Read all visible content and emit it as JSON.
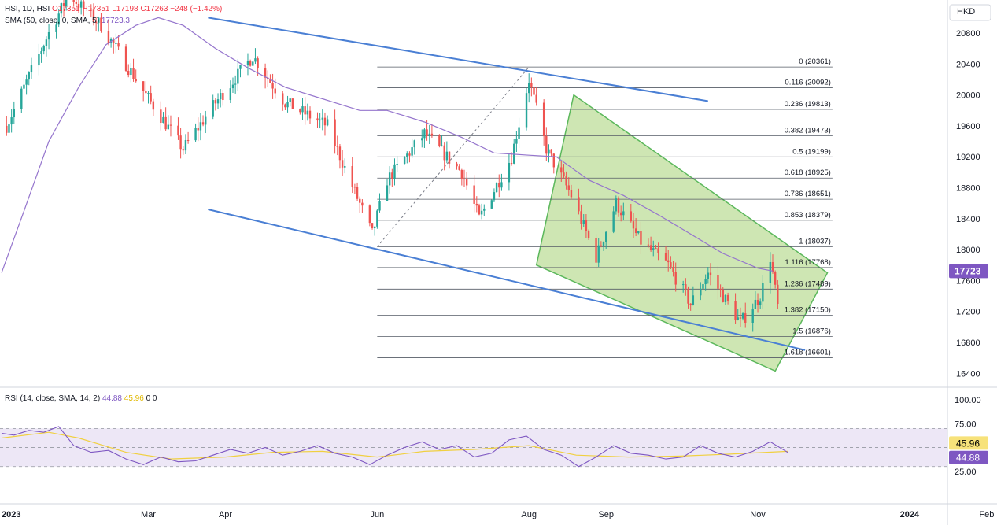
{
  "header": {
    "symbol": "HSI, 1D, HSI",
    "open": "O17351",
    "high": "H17351",
    "low": "L17198",
    "close": "C17263",
    "change": "−248 (−1.42%)",
    "sma_label": "SMA (50, close, 0, SMA, 5)",
    "sma_value": "17723.3",
    "rsi_label": "RSI (14, close, SMA, 14, 2)",
    "rsi_value": "44.88",
    "rsi_ma_value": "45.96",
    "rsi_extra": "0 0"
  },
  "colors": {
    "up": "#26a69a",
    "down": "#ef5350",
    "sma": "#9575cd",
    "channel": "#4a7fd4",
    "box_stroke": "#5cb85c",
    "box_fill": "#8bc34a",
    "rsi": "#7e57c2",
    "rsi_ma": "#f0d040",
    "rsi_band": "#ede7f6"
  },
  "chart_data": {
    "type": "candlestick",
    "currency": "HKD",
    "price_axis": {
      "ticks": [
        "20800",
        "20400",
        "20000",
        "19600",
        "19200",
        "18800",
        "18400",
        "18000",
        "17600",
        "17200",
        "16800",
        "16400"
      ],
      "range": [
        16200,
        21200
      ]
    },
    "x_axis": {
      "labels": [
        {
          "text": "2023",
          "date": "2023-01-01",
          "bold": true
        },
        {
          "text": "Mar",
          "date": "2023-03-01"
        },
        {
          "text": "Apr",
          "date": "2023-04-01"
        },
        {
          "text": "Jun",
          "date": "2023-06-01"
        },
        {
          "text": "Aug",
          "date": "2023-08-01"
        },
        {
          "text": "Sep",
          "date": "2023-09-01"
        },
        {
          "text": "Nov",
          "date": "2023-11-01"
        },
        {
          "text": "2024",
          "date": "2024-01-01",
          "bold": true
        },
        {
          "text": "Feb",
          "date": "2024-02-01"
        }
      ]
    },
    "last_price_label": "17723",
    "fibonacci": {
      "start_date": "2023-06-01",
      "end_date": "2023-12-01",
      "levels": [
        {
          "ratio": "0",
          "price": 20361
        },
        {
          "ratio": "0.116",
          "price": 20092
        },
        {
          "ratio": "0.236",
          "price": 19813
        },
        {
          "ratio": "0.382",
          "price": 19473
        },
        {
          "ratio": "0.5",
          "price": 19199
        },
        {
          "ratio": "0.618",
          "price": 18925
        },
        {
          "ratio": "0.736",
          "price": 18651
        },
        {
          "ratio": "0.853",
          "price": 18379
        },
        {
          "ratio": "1",
          "price": 18037
        },
        {
          "ratio": "1.116",
          "price": 17768
        },
        {
          "ratio": "1.236",
          "price": 17489
        },
        {
          "ratio": "1.382",
          "price": 17150
        },
        {
          "ratio": "1.5",
          "price": 16876
        },
        {
          "ratio": "1.618",
          "price": 16601
        }
      ],
      "trend_line": [
        [
          "2023-06-01",
          18037
        ],
        [
          "2023-08-01",
          20361
        ]
      ]
    },
    "channel_lines": [
      [
        [
          "2023-03-25",
          21000
        ],
        [
          "2023-10-12",
          19920
        ]
      ],
      [
        [
          "2023-03-25",
          18520
        ],
        [
          "2023-11-20",
          16700
        ]
      ]
    ],
    "projection_box": [
      [
        "2023-08-04",
        17800
      ],
      [
        "2023-08-19",
        20000
      ],
      [
        "2023-11-29",
        17700
      ],
      [
        "2023-11-08",
        16430
      ]
    ],
    "sma_points": [
      [
        "2023-01-01",
        17700
      ],
      [
        "2023-01-10",
        18500
      ],
      [
        "2023-01-20",
        19400
      ],
      [
        "2023-02-01",
        20100
      ],
      [
        "2023-02-12",
        20650
      ],
      [
        "2023-02-24",
        20900
      ],
      [
        "2023-03-05",
        21000
      ],
      [
        "2023-03-15",
        20900
      ],
      [
        "2023-03-28",
        20600
      ],
      [
        "2023-04-10",
        20350
      ],
      [
        "2023-04-25",
        20100
      ],
      [
        "2023-05-10",
        19950
      ],
      [
        "2023-05-25",
        19800
      ],
      [
        "2023-06-05",
        19800
      ],
      [
        "2023-06-20",
        19650
      ],
      [
        "2023-07-05",
        19450
      ],
      [
        "2023-07-18",
        19250
      ],
      [
        "2023-08-01",
        19220
      ],
      [
        "2023-08-12",
        19200
      ],
      [
        "2023-08-25",
        18900
      ],
      [
        "2023-09-08",
        18700
      ],
      [
        "2023-09-22",
        18450
      ],
      [
        "2023-10-05",
        18200
      ],
      [
        "2023-10-18",
        17950
      ],
      [
        "2023-11-01",
        17760
      ],
      [
        "2023-11-07",
        17723
      ]
    ],
    "rsi_axis": {
      "ticks": [
        "100.00",
        "75.00",
        "25.00"
      ],
      "range": [
        0,
        110
      ],
      "upper_band": 70,
      "middle": 50,
      "lower_band": 30
    },
    "rsi_points": [
      [
        "2023-01-01",
        65
      ],
      [
        "2023-01-06",
        63
      ],
      [
        "2023-01-12",
        68
      ],
      [
        "2023-01-18",
        66
      ],
      [
        "2023-01-24",
        72
      ],
      [
        "2023-01-30",
        52
      ],
      [
        "2023-02-06",
        45
      ],
      [
        "2023-02-13",
        47
      ],
      [
        "2023-02-20",
        38
      ],
      [
        "2023-02-27",
        32
      ],
      [
        "2023-03-06",
        40
      ],
      [
        "2023-03-13",
        35
      ],
      [
        "2023-03-20",
        36
      ],
      [
        "2023-03-27",
        42
      ],
      [
        "2023-04-03",
        48
      ],
      [
        "2023-04-10",
        44
      ],
      [
        "2023-04-17",
        50
      ],
      [
        "2023-04-24",
        42
      ],
      [
        "2023-05-01",
        46
      ],
      [
        "2023-05-08",
        52
      ],
      [
        "2023-05-15",
        44
      ],
      [
        "2023-05-22",
        40
      ],
      [
        "2023-05-29",
        32
      ],
      [
        "2023-06-05",
        42
      ],
      [
        "2023-06-12",
        50
      ],
      [
        "2023-06-19",
        56
      ],
      [
        "2023-06-26",
        48
      ],
      [
        "2023-07-03",
        52
      ],
      [
        "2023-07-10",
        40
      ],
      [
        "2023-07-17",
        44
      ],
      [
        "2023-07-24",
        58
      ],
      [
        "2023-07-31",
        62
      ],
      [
        "2023-08-07",
        48
      ],
      [
        "2023-08-14",
        42
      ],
      [
        "2023-08-21",
        30
      ],
      [
        "2023-08-28",
        40
      ],
      [
        "2023-09-04",
        52
      ],
      [
        "2023-09-11",
        44
      ],
      [
        "2023-09-18",
        42
      ],
      [
        "2023-09-25",
        38
      ],
      [
        "2023-10-02",
        40
      ],
      [
        "2023-10-09",
        52
      ],
      [
        "2023-10-16",
        44
      ],
      [
        "2023-10-23",
        40
      ],
      [
        "2023-10-30",
        46
      ],
      [
        "2023-11-06",
        56
      ],
      [
        "2023-11-13",
        44.88
      ]
    ],
    "rsi_ma_points": [
      [
        "2023-01-01",
        60
      ],
      [
        "2023-01-20",
        66
      ],
      [
        "2023-02-01",
        60
      ],
      [
        "2023-02-20",
        45
      ],
      [
        "2023-03-10",
        38
      ],
      [
        "2023-04-01",
        40
      ],
      [
        "2023-04-20",
        45
      ],
      [
        "2023-05-10",
        46
      ],
      [
        "2023-06-01",
        40
      ],
      [
        "2023-06-20",
        46
      ],
      [
        "2023-07-10",
        48
      ],
      [
        "2023-08-01",
        52
      ],
      [
        "2023-08-20",
        42
      ],
      [
        "2023-09-10",
        40
      ],
      [
        "2023-10-01",
        41
      ],
      [
        "2023-10-20",
        43
      ],
      [
        "2023-11-13",
        45.96
      ]
    ]
  }
}
